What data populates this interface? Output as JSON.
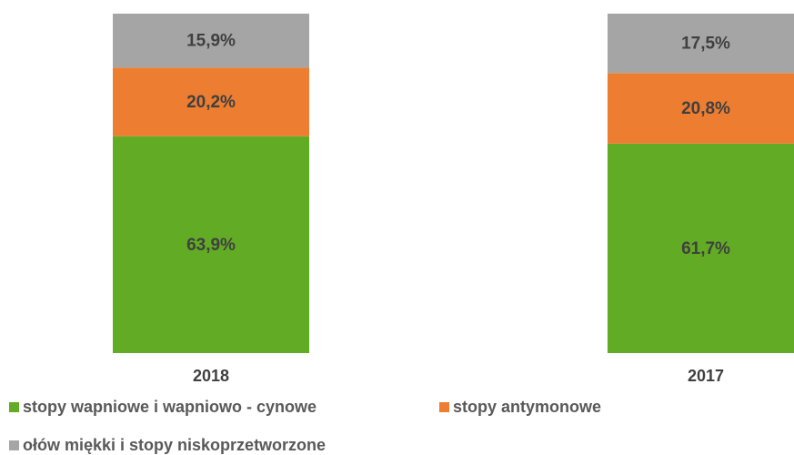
{
  "chart_data": {
    "type": "stacked_bar",
    "categories": [
      "2018",
      "2017"
    ],
    "series": [
      {
        "name": "stopy wapniowe i wapniowo - cynowe",
        "color": "#62ab24",
        "values": [
          63.9,
          61.7
        ],
        "value_labels": [
          "63,9%",
          "61,7%"
        ]
      },
      {
        "name": "stopy antymonowe",
        "color": "#ed7d31",
        "values": [
          20.2,
          20.8
        ],
        "value_labels": [
          "20,2%",
          "20,8%"
        ]
      },
      {
        "name": "ołów miękki i stopy niskoprzetworzone",
        "color": "#a5a5a5",
        "values": [
          15.9,
          17.5
        ],
        "value_labels": [
          "15,9%",
          "17,5%"
        ]
      }
    ],
    "ylim": [
      0,
      100
    ]
  }
}
